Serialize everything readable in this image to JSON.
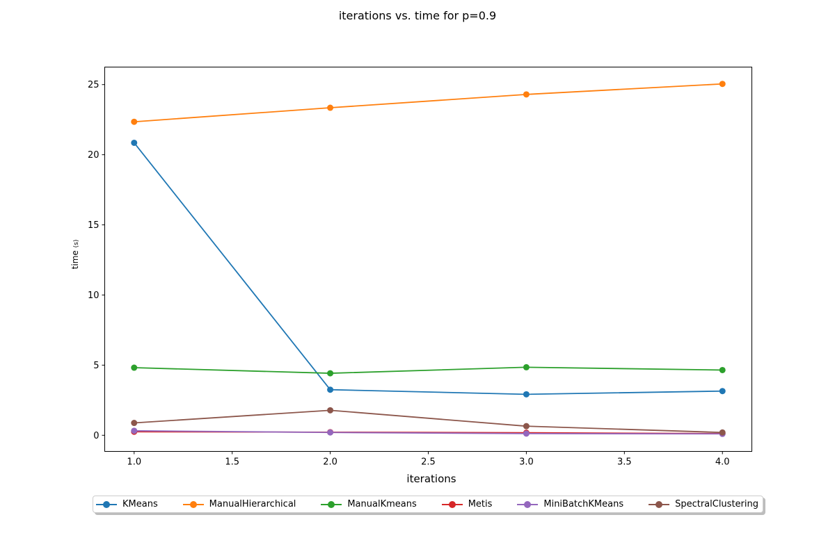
{
  "chart_data": {
    "type": "line",
    "title": {
      "part1": "iterations",
      "part2": " vs. time for p=0.9"
    },
    "xlabel": "iterations",
    "ylabel": {
      "main": "time",
      "unit": "(s)"
    },
    "x": [
      1.0,
      2.0,
      3.0,
      4.0
    ],
    "xlim": [
      0.85,
      4.15
    ],
    "ylim": [
      -1.15,
      26.25
    ],
    "xticks": [
      1.0,
      1.5,
      2.0,
      2.5,
      3.0,
      3.5,
      4.0
    ],
    "xtick_labels": [
      "1.0",
      "1.5",
      "2.0",
      "2.5",
      "3.0",
      "3.5",
      "4.0"
    ],
    "yticks": [
      0,
      5,
      10,
      15,
      20,
      25
    ],
    "ytick_labels": [
      "0",
      "5",
      "10",
      "15",
      "20",
      "25"
    ],
    "grid": false,
    "legend_position": "bottom-center",
    "series": [
      {
        "name": "KMeans",
        "color": "#1f77b4",
        "values": [
          20.85,
          3.25,
          2.92,
          3.15
        ]
      },
      {
        "name": "ManualHierarchical",
        "color": "#ff7f0e",
        "values": [
          22.35,
          23.35,
          24.3,
          25.05
        ]
      },
      {
        "name": "ManualKmeans",
        "color": "#2ca02c",
        "values": [
          4.82,
          4.42,
          4.85,
          4.65
        ]
      },
      {
        "name": "Metis",
        "color": "#d62728",
        "values": [
          0.25,
          0.22,
          0.18,
          0.12
        ]
      },
      {
        "name": "MiniBatchKMeans",
        "color": "#9467bd",
        "values": [
          0.32,
          0.2,
          0.12,
          0.1
        ]
      },
      {
        "name": "SpectralClustering",
        "color": "#8c564b",
        "values": [
          0.88,
          1.78,
          0.65,
          0.2
        ]
      }
    ]
  }
}
